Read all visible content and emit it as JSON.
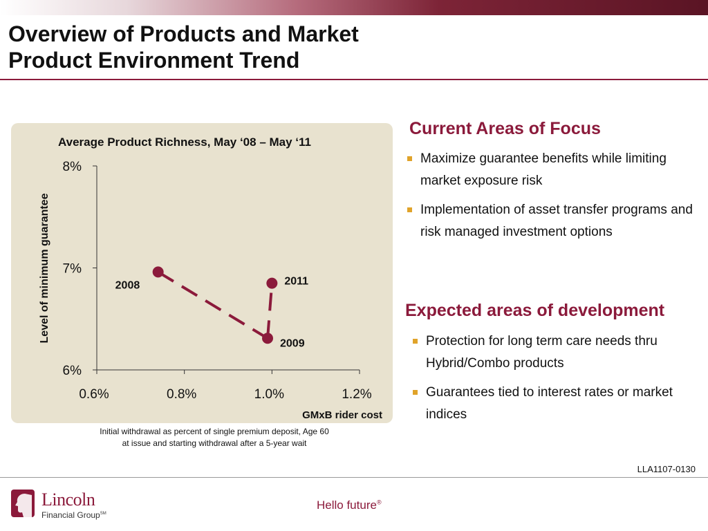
{
  "header": {
    "title_line1": "Overview of Products and Market",
    "title_line2": "Product Environment Trend"
  },
  "colors": {
    "accent": "#8b1a3b",
    "bullet": "#e0a32a",
    "panel": "#e8e2cf"
  },
  "chart_data": {
    "type": "line",
    "title": "Average Product Richness, May ‘08 – May ‘11",
    "xlabel": "GMxB rider cost",
    "ylabel": "Level of minimum guarantee",
    "xlim": [
      0.6,
      1.2
    ],
    "ylim": [
      6,
      8
    ],
    "x_ticks": [
      "0.6%",
      "0.8%",
      "1.0%",
      "1.2%"
    ],
    "y_ticks": [
      "6%",
      "7%",
      "8%"
    ],
    "grid": false,
    "series": [
      {
        "points": [
          {
            "label": "2008",
            "x": 0.74,
            "y": 6.96
          },
          {
            "label": "2009",
            "x": 0.99,
            "y": 6.31
          },
          {
            "label": "2011",
            "x": 1.0,
            "y": 6.85
          }
        ]
      }
    ]
  },
  "chart_note": {
    "line1": "Initial withdrawal as percent of single premium deposit, Age 60",
    "line2": "at issue and starting withdrawal after a 5-year wait"
  },
  "focus": {
    "heading": "Current Areas of Focus",
    "bullets": [
      "Maximize guarantee benefits while limiting market exposure risk",
      "Implementation of asset transfer programs and risk managed investment options"
    ]
  },
  "development": {
    "heading": "Expected areas of development",
    "bullets": [
      "Protection for long term care needs thru Hybrid/Combo products",
      "Guarantees tied to interest rates or market indices"
    ]
  },
  "footer": {
    "doc_code": "LLA1107-0130",
    "logo_name": "Lincoln",
    "logo_sub": "Financial Group",
    "logo_sub_mark": "SM",
    "tagline": "Hello future",
    "tagline_mark": "®"
  }
}
